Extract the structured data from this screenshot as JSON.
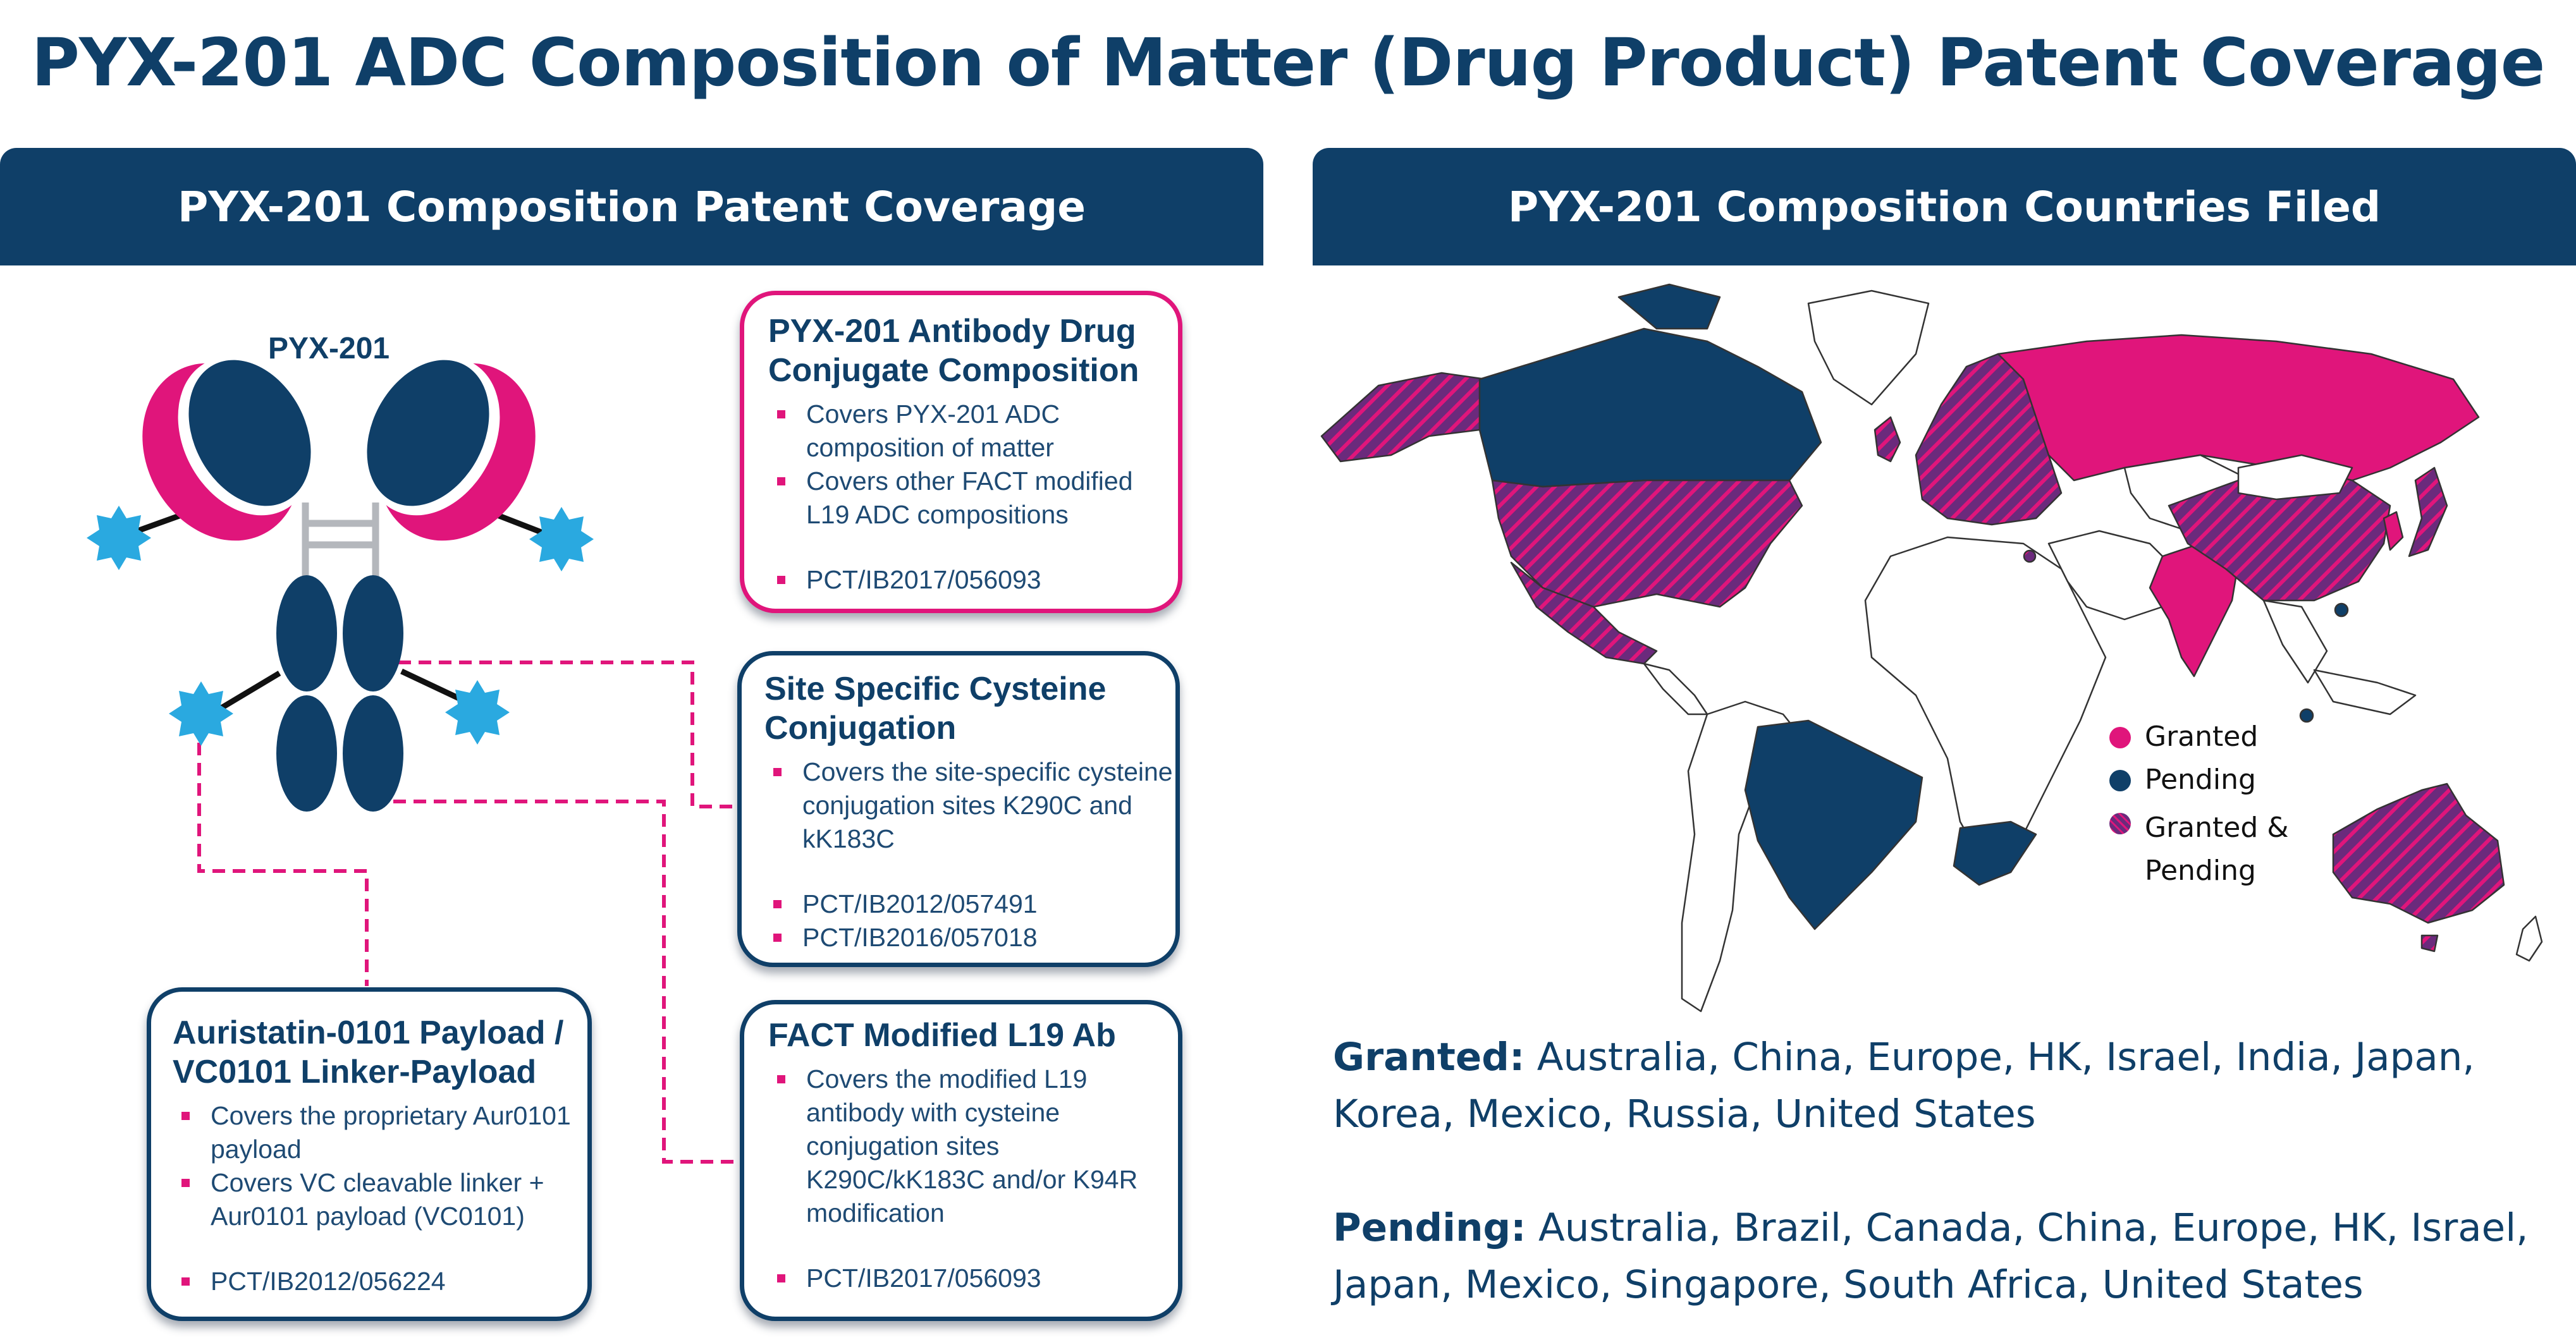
{
  "title": "PYX-201 ADC Composition of Matter (Drug Product) Patent Coverage",
  "left_header": "PYX-201 Composition Patent Coverage",
  "right_header": "PYX-201 Composition Countries Filed",
  "antibody_label": "PYX-201",
  "boxes": {
    "adc": {
      "title": "PYX-201 Antibody Drug Conjugate Composition",
      "bullets": [
        "Covers PYX-201 ADC composition of matter",
        "Covers other FACT modified L19 ADC compositions"
      ],
      "patents": [
        "PCT/IB2017/056093"
      ]
    },
    "site": {
      "title": "Site Specific Cysteine Conjugation",
      "bullets": [
        "Covers the site-specific cysteine conjugation sites K290C and kK183C"
      ],
      "patents": [
        "PCT/IB2012/057491",
        "PCT/IB2016/057018"
      ]
    },
    "fact": {
      "title": "FACT Modified L19 Ab",
      "bullets": [
        "Covers the modified L19 antibody with cysteine conjugation sites K290C/kK183C and/or K94R modification"
      ],
      "patents": [
        "PCT/IB2017/056093"
      ]
    },
    "aur": {
      "title": "Auristatin-0101 Payload / VC0101 Linker-Payload",
      "bullets": [
        "Covers the proprietary Aur0101 payload",
        "Covers VC cleavable linker + Aur0101 payload (VC0101)"
      ],
      "patents": [
        "PCT/IB2012/056224"
      ]
    }
  },
  "legend": {
    "granted": "Granted",
    "pending": "Pending",
    "both": "Granted & Pending"
  },
  "colors": {
    "granted": "#e0157b",
    "pending": "#0f3f68",
    "both": "#6b2a7c",
    "header": "#0f3f68"
  },
  "granted_label": "Granted:",
  "granted_list": "Australia, China, Europe, HK, Israel, India, Japan, Korea, Mexico, Russia, United States",
  "pending_label": "Pending:",
  "pending_list": "Australia, Brazil, Canada, China, Europe, HK, Israel, Japan, Mexico, Singapore, South Africa, United States"
}
